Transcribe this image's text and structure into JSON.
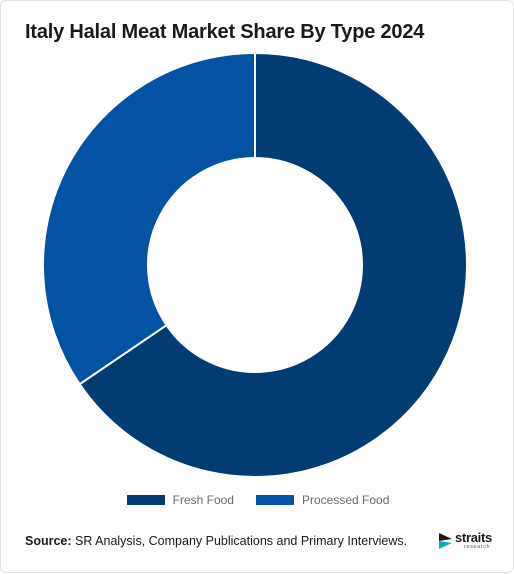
{
  "title": "Italy Halal Meat Market Share By Type 2024",
  "chart_data": {
    "type": "pie",
    "variant": "donut",
    "title": "Italy Halal Meat Market Share By Type 2024",
    "categories": [
      "Fresh Food",
      "Processed Food"
    ],
    "values": [
      65.5,
      34.5
    ],
    "colors": [
      "#033b73",
      "#0352a3"
    ],
    "legend_position": "bottom"
  },
  "footer": {
    "source_label": "Source:",
    "source_text": " SR Analysis, Company Publications and Primary Interviews."
  },
  "logo": {
    "name": "straits",
    "sub": "research"
  }
}
